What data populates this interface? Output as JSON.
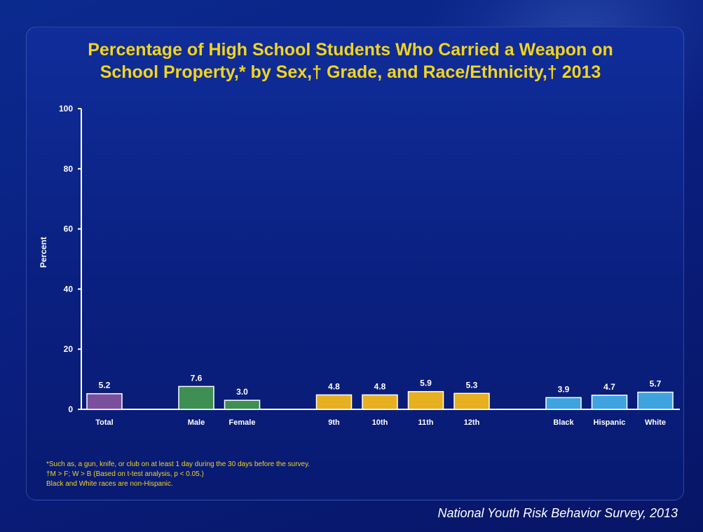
{
  "title_line1": "Percentage of High School Students Who Carried a Weapon on",
  "title_line2": "School Property,* by Sex,† Grade, and Race/Ethnicity,† 2013",
  "footnotes": [
    "*Such as, a gun, knife, or club on at least 1 day during the 30 days before the survey.",
    "†M > F; W > B (Based on t-test analysis, p < 0.05.)",
    "Black and White races are non-Hispanic."
  ],
  "source": "National Youth Risk Behavior Survey, 2013",
  "colors": {
    "title": "#f2d41e",
    "total": "#7a4f9e",
    "sex": "#3d8f52",
    "grade": "#e6b020",
    "race": "#3fa3e0"
  },
  "chart_data": {
    "type": "bar",
    "ylabel": "Percent",
    "xlabel": "",
    "ylim": [
      0,
      100
    ],
    "yticks": [
      0,
      20,
      40,
      60,
      80,
      100
    ],
    "grid": false,
    "groups": [
      {
        "name": "Total",
        "color_key": "total",
        "categories": [
          "Total"
        ],
        "values": [
          5.2
        ],
        "labels": [
          "5.2"
        ]
      },
      {
        "name": "Sex",
        "color_key": "sex",
        "categories": [
          "Male",
          "Female"
        ],
        "values": [
          7.6,
          3.0
        ],
        "labels": [
          "7.6",
          "3.0"
        ]
      },
      {
        "name": "Grade",
        "color_key": "grade",
        "categories": [
          "9th",
          "10th",
          "11th",
          "12th"
        ],
        "values": [
          4.8,
          4.8,
          5.9,
          5.3
        ],
        "labels": [
          "4.8",
          "4.8",
          "5.9",
          "5.3"
        ]
      },
      {
        "name": "Race/Ethnicity",
        "color_key": "race",
        "categories": [
          "Black",
          "Hispanic",
          "White"
        ],
        "values": [
          3.9,
          4.7,
          5.7
        ],
        "labels": [
          "3.9",
          "4.7",
          "5.7"
        ]
      }
    ]
  }
}
